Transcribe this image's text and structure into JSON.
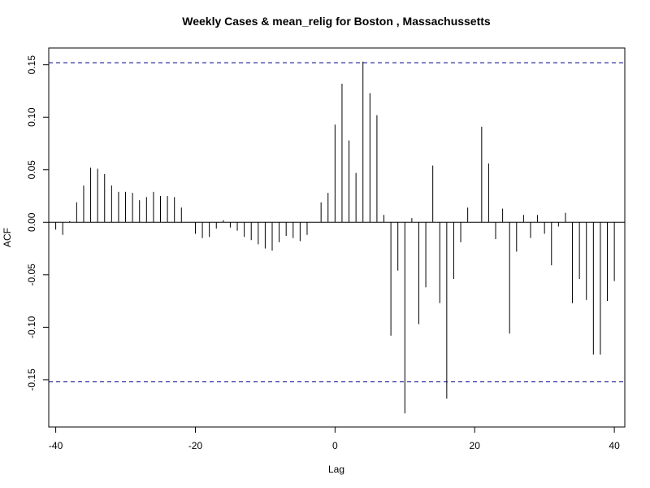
{
  "chart_data": {
    "type": "bar",
    "title": "Weekly Cases & mean_relig for Boston , Massachussetts",
    "xlabel": "Lag",
    "ylabel": "ACF",
    "xlim": [
      -41,
      41.5
    ],
    "ylim": [
      -0.195,
      0.166
    ],
    "x_ticks": [
      -40,
      -20,
      0,
      20,
      40
    ],
    "x_tick_labels": [
      "-40",
      "-20",
      "0",
      "20",
      "40"
    ],
    "y_ticks": [
      -0.15,
      -0.1,
      -0.05,
      0.0,
      0.05,
      0.1,
      0.15
    ],
    "y_tick_labels": [
      "-0.15",
      "-0.10",
      "-0.05",
      "0.00",
      "0.05",
      "0.10",
      "0.15"
    ],
    "confidence_bounds": [
      0.152,
      -0.152
    ],
    "colors": {
      "bars": "#000000",
      "confidence": "#00008b",
      "zero_line": "#000000"
    },
    "lags": [
      -40,
      -39,
      -38,
      -37,
      -36,
      -35,
      -34,
      -33,
      -32,
      -31,
      -30,
      -29,
      -28,
      -27,
      -26,
      -25,
      -24,
      -23,
      -22,
      -21,
      -20,
      -19,
      -18,
      -17,
      -16,
      -15,
      -14,
      -13,
      -12,
      -11,
      -10,
      -9,
      -8,
      -7,
      -6,
      -5,
      -4,
      -3,
      -2,
      -1,
      0,
      1,
      2,
      3,
      4,
      5,
      6,
      7,
      8,
      9,
      10,
      11,
      12,
      13,
      14,
      15,
      16,
      17,
      18,
      19,
      20,
      21,
      22,
      23,
      24,
      25,
      26,
      27,
      28,
      29,
      30,
      31,
      32,
      33,
      34,
      35,
      36,
      37,
      38,
      39,
      40
    ],
    "values": [
      -0.007,
      -0.012,
      0.001,
      0.019,
      0.035,
      0.052,
      0.051,
      0.046,
      0.035,
      0.029,
      0.029,
      0.028,
      0.021,
      0.024,
      0.029,
      0.025,
      0.025,
      0.024,
      0.014,
      0.0,
      -0.011,
      -0.015,
      -0.014,
      -0.006,
      0.002,
      -0.005,
      -0.008,
      -0.014,
      -0.017,
      -0.021,
      -0.025,
      -0.027,
      -0.019,
      -0.013,
      -0.015,
      -0.018,
      -0.012,
      0.0,
      0.019,
      0.028,
      0.093,
      0.132,
      0.078,
      0.047,
      0.153,
      0.123,
      0.102,
      0.007,
      -0.108,
      -0.046,
      -0.182,
      0.004,
      -0.097,
      -0.062,
      0.054,
      -0.077,
      -0.168,
      -0.054,
      -0.019,
      0.014,
      0.0,
      0.091,
      0.056,
      -0.016,
      0.013,
      -0.106,
      -0.028,
      0.007,
      -0.015,
      0.007,
      -0.011,
      -0.041,
      -0.004,
      0.009,
      -0.077,
      -0.054,
      -0.074,
      -0.126,
      -0.126,
      -0.075,
      -0.056
    ]
  }
}
